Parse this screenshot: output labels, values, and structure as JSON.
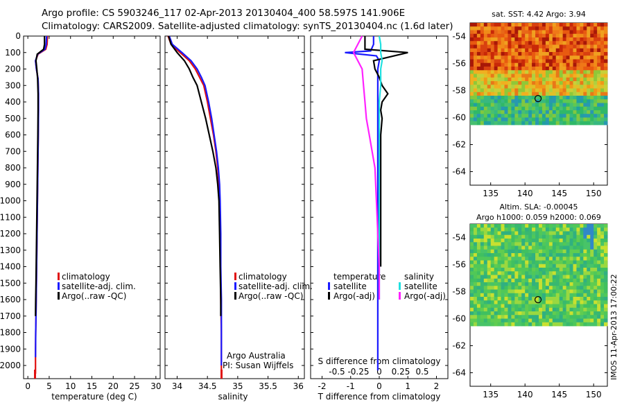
{
  "header": {
    "line1": "Argo profile: CS 5903246_117 02-Apr-2013 20130404_400 58.597S 141.906E",
    "line2": "Climatology: CARS2009. Satellite-adjusted climatology: synTS_20130404.nc (1.6d later)"
  },
  "colors": {
    "climatology": "#e01010",
    "satellite_adj": "#1a1aff",
    "argo": "#000000",
    "sat_t": "#1a1aff",
    "sat_s": "#22e0e0",
    "argo_s": "#ff22ff"
  },
  "panels": {
    "temperature": {
      "xlabel": "temperature (deg C)",
      "xticks": [
        "0",
        "5",
        "10",
        "15",
        "20",
        "25",
        "30"
      ],
      "legend": [
        "climatology",
        "satellite-adj. clim.",
        "Argo(..raw -QC)"
      ]
    },
    "salinity": {
      "xlabel": "salinity",
      "xticks": [
        "34",
        "34.5",
        "35",
        "35.5",
        "36"
      ],
      "legend": [
        "climatology",
        "satellite-adj. clim.",
        "Argo(..raw -QC)"
      ],
      "credit1": "Argo Australia",
      "credit2": "PI: Susan Wijffels"
    },
    "difference": {
      "xlabel": "T difference from climatology",
      "xticks": [
        "-2",
        "-1",
        "0",
        "1",
        "2"
      ],
      "top_label": "S difference from climatology",
      "top_ticks": [
        "-0.5",
        "-0.25",
        "0",
        "0.25",
        "0.5"
      ],
      "legend_t_title": "temperature",
      "legend_s_title": "salinity",
      "legend_t": [
        "satellite",
        "Argo(-adj)"
      ],
      "legend_s": [
        "satellite",
        "Argo(-adj)"
      ]
    },
    "sst_map": {
      "title": "sat. SST: 4.42  Argo: 3.94",
      "yticks": [
        "-54",
        "-56",
        "-58",
        "-60",
        "-62",
        "-64"
      ],
      "xticks": [
        "135",
        "140",
        "145",
        "150"
      ]
    },
    "sla_map": {
      "title1": "Altim. SLA: -0.00045",
      "title2": "Argo h1000: 0.059 h2000: 0.069",
      "yticks": [
        "-54",
        "-56",
        "-58",
        "-60",
        "-62",
        "-64"
      ],
      "xticks": [
        "135",
        "140",
        "145",
        "150"
      ],
      "stamp": "IMOS 11-Apr-2013 17:00:22"
    }
  },
  "depth_ticks": [
    "0",
    "100",
    "200",
    "300",
    "400",
    "500",
    "600",
    "700",
    "800",
    "900",
    "1000",
    "1100",
    "1200",
    "1300",
    "1400",
    "1500",
    "1600",
    "1700",
    "1800",
    "1900",
    "2000"
  ],
  "chart_data": [
    {
      "type": "line",
      "xlabel": "temperature (deg C)",
      "ylabel": "",
      "xlim": [
        -1,
        31
      ],
      "ylim": [
        2080,
        0
      ],
      "series": [
        {
          "name": "climatology",
          "x": [
            4.6,
            4.5,
            4.2,
            2.4,
            1.8,
            2.0,
            2.4,
            2.5,
            2.5,
            2.45,
            2.4,
            2.35,
            2.3,
            2.25,
            2.2,
            2.15,
            2.1,
            2.05,
            2.0,
            1.95,
            1.9,
            1.85,
            1.8,
            1.8
          ],
          "y": [
            0,
            50,
            80,
            110,
            150,
            200,
            260,
            350,
            450,
            600,
            700,
            800,
            900,
            1000,
            1100,
            1200,
            1300,
            1400,
            1500,
            1600,
            1700,
            1800,
            1900,
            2050
          ]
        },
        {
          "name": "satellite-adj. clim.",
          "x": [
            4.4,
            4.3,
            4.0,
            2.3,
            1.8,
            2.0,
            2.4,
            2.5,
            2.5,
            2.45,
            2.4,
            2.35,
            2.3,
            2.25,
            2.2,
            2.15,
            2.1,
            2.05,
            2.0,
            1.95,
            1.9,
            1.85,
            1.8
          ],
          "y": [
            0,
            50,
            80,
            110,
            150,
            200,
            260,
            350,
            450,
            600,
            700,
            800,
            900,
            1000,
            1100,
            1200,
            1300,
            1400,
            1500,
            1600,
            1700,
            1800,
            1950
          ]
        },
        {
          "name": "Argo(..raw -QC)",
          "x": [
            3.9,
            3.9,
            3.7,
            2.2,
            1.9,
            2.1,
            2.3,
            2.4,
            2.4,
            2.35,
            2.3,
            2.25,
            2.2,
            2.15,
            2.1,
            2.05,
            2.0,
            1.95,
            1.9,
            1.85,
            1.8
          ],
          "y": [
            0,
            50,
            80,
            110,
            150,
            200,
            260,
            350,
            450,
            600,
            700,
            800,
            900,
            1000,
            1100,
            1200,
            1300,
            1400,
            1500,
            1600,
            1700
          ]
        }
      ]
    },
    {
      "type": "line",
      "xlabel": "salinity",
      "ylabel": "",
      "xlim": [
        33.8,
        36.1
      ],
      "ylim": [
        2080,
        0
      ],
      "series": [
        {
          "name": "climatology",
          "x": [
            33.85,
            33.9,
            34.05,
            34.2,
            34.3,
            34.37,
            34.44,
            34.5,
            34.55,
            34.6,
            34.64,
            34.67,
            34.69,
            34.7,
            34.71,
            34.72,
            34.72,
            34.73,
            34.73,
            34.73
          ],
          "y": [
            0,
            50,
            100,
            150,
            200,
            250,
            300,
            400,
            500,
            600,
            700,
            800,
            900,
            1000,
            1200,
            1400,
            1600,
            1800,
            2000,
            2050
          ]
        },
        {
          "name": "satellite-adj. clim.",
          "x": [
            33.87,
            33.92,
            34.08,
            34.23,
            34.33,
            34.4,
            34.46,
            34.52,
            34.57,
            34.61,
            34.65,
            34.68,
            34.7,
            34.71,
            34.72,
            34.72,
            34.73,
            34.73,
            34.73
          ],
          "y": [
            0,
            50,
            100,
            150,
            200,
            250,
            300,
            400,
            500,
            600,
            700,
            800,
            900,
            1000,
            1200,
            1400,
            1600,
            1800,
            2000
          ]
        },
        {
          "name": "Argo(..raw -QC)",
          "x": [
            33.86,
            33.9,
            34.0,
            34.12,
            34.2,
            34.26,
            34.33,
            34.4,
            34.47,
            34.53,
            34.59,
            34.64,
            34.67,
            34.69,
            34.7,
            34.71,
            34.72,
            34.72
          ],
          "y": [
            0,
            50,
            100,
            150,
            200,
            250,
            300,
            400,
            500,
            600,
            700,
            800,
            900,
            1000,
            1200,
            1400,
            1600,
            1700
          ]
        }
      ]
    },
    {
      "type": "line",
      "xlabel": "T difference from climatology",
      "ylabel": "",
      "xlim": [
        -2.4,
        2.4
      ],
      "ylim": [
        2080,
        0
      ],
      "series": [
        {
          "name": "temperature satellite",
          "x": [
            -0.2,
            -0.2,
            -0.3,
            -1.2,
            -0.1,
            0.0,
            -0.05,
            -0.05,
            -0.05,
            -0.05,
            -0.05,
            -0.05,
            -0.05,
            -0.05,
            -0.05,
            -0.05,
            -0.05,
            -0.05,
            -0.05
          ],
          "y": [
            0,
            50,
            90,
            100,
            120,
            150,
            200,
            300,
            400,
            600,
            800,
            1000,
            1200,
            1400,
            1500,
            1600,
            1800,
            2000,
            2030
          ]
        },
        {
          "name": "temperature Argo(-adj)",
          "x": [
            -0.5,
            -0.5,
            -0.5,
            1.0,
            -0.2,
            -0.15,
            0.0,
            0.1,
            0.3,
            0.1,
            0.05,
            0.1,
            0.05,
            0.05,
            0.05,
            0.05,
            0.05
          ],
          "y": [
            0,
            50,
            80,
            100,
            150,
            200,
            250,
            300,
            350,
            400,
            450,
            500,
            600,
            800,
            1000,
            1200,
            1400
          ]
        },
        {
          "name": "salinity satellite",
          "x": [
            0.0,
            0.05,
            0.05,
            0.1,
            0.05,
            0.05,
            0.0,
            0.0,
            0.0,
            0.0,
            0.0,
            0.0,
            0.0
          ],
          "y": [
            0,
            50,
            100,
            150,
            200,
            300,
            400,
            600,
            800,
            1000,
            1200,
            1400,
            1600
          ]
        },
        {
          "name": "salinity Argo(-adj)",
          "x": [
            -0.6,
            -0.9,
            -0.6,
            -0.55,
            -0.5,
            -0.45,
            -0.35,
            -0.25,
            -0.15,
            -0.1,
            -0.05,
            0.0,
            0.0
          ],
          "y": [
            0,
            100,
            200,
            300,
            400,
            500,
            600,
            700,
            800,
            1000,
            1200,
            1400,
            1600
          ]
        }
      ]
    },
    {
      "type": "heatmap",
      "title": "sat. SST: 4.42  Argo: 3.94",
      "xlim": [
        132,
        152
      ],
      "ylim": [
        -65,
        -53
      ],
      "data_extent_lat": [
        -60,
        -53
      ],
      "argo_location": {
        "lon": 141.906,
        "lat": -58.597
      }
    },
    {
      "type": "heatmap",
      "title": "Altim. SLA: -0.00045",
      "xlim": [
        132,
        152
      ],
      "ylim": [
        -65,
        -53
      ],
      "data_extent_lat": [
        -60,
        -53
      ],
      "argo_location": {
        "lon": 141.906,
        "lat": -58.597
      }
    }
  ]
}
